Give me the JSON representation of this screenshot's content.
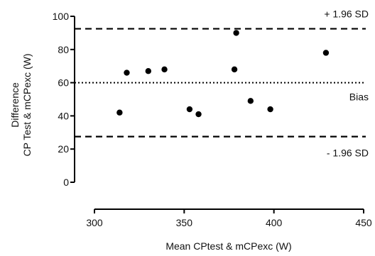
{
  "chart_data": {
    "type": "scatter",
    "title": "",
    "xlabel": "Mean CPtest & mCPexc (W)",
    "ylabel_lines": [
      "Difference",
      "CP Test & mCPexc (W)"
    ],
    "xlim": [
      300,
      450
    ],
    "ylim": [
      0,
      100
    ],
    "x_ticks": [
      300,
      350,
      400,
      450
    ],
    "y_ticks": [
      0,
      20,
      40,
      60,
      80,
      100
    ],
    "points": [
      {
        "x": 314,
        "y": 42
      },
      {
        "x": 318,
        "y": 66
      },
      {
        "x": 330,
        "y": 67
      },
      {
        "x": 339,
        "y": 68
      },
      {
        "x": 353,
        "y": 44
      },
      {
        "x": 358,
        "y": 41
      },
      {
        "x": 378,
        "y": 68
      },
      {
        "x": 379,
        "y": 90
      },
      {
        "x": 387,
        "y": 49
      },
      {
        "x": 398,
        "y": 44
      },
      {
        "x": 429,
        "y": 78
      }
    ],
    "reference_lines": [
      {
        "label": "+ 1.96 SD",
        "y": 92.5,
        "style": "dashed"
      },
      {
        "label": "Bias",
        "y": 60,
        "style": "dotted"
      },
      {
        "label": "- 1.96 SD",
        "y": 27.5,
        "style": "dashed"
      }
    ],
    "grid": false
  }
}
